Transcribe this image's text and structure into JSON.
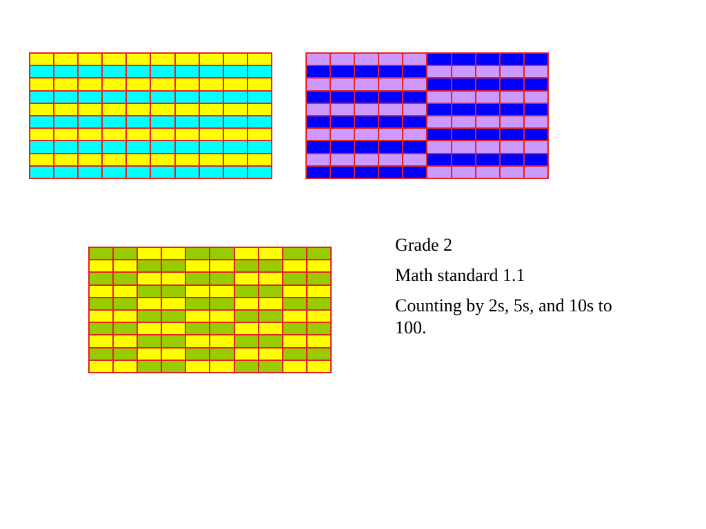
{
  "text": {
    "grade": "Grade 2",
    "standard": "Math standard 1.1",
    "description": "Counting by 2s, 5s, and 10s to 100."
  },
  "colors": {
    "border": "#e32222",
    "yellow": "#ffff00",
    "cyan": "#00ffff",
    "lavender": "#cc99ff",
    "blue": "#0000ff",
    "green": "#99cc00"
  },
  "grids": [
    {
      "id": "grid-twos",
      "pattern": "alternating-rows",
      "colors": [
        "yellow",
        "cyan"
      ]
    },
    {
      "id": "grid-fives",
      "pattern": "halves-alternating-rows",
      "colors": [
        "lavender",
        "blue"
      ]
    },
    {
      "id": "grid-tens",
      "pattern": "column-pairs-alternating-rows",
      "colors": [
        "green",
        "yellow"
      ]
    }
  ]
}
